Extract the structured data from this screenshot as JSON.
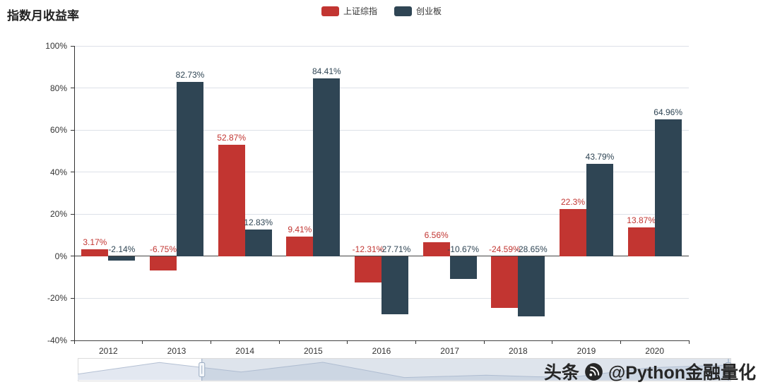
{
  "title": "指数月收益率",
  "legend": [
    {
      "label": "上证综指",
      "color": "#c23531"
    },
    {
      "label": "创业板",
      "color": "#2f4554"
    }
  ],
  "watermark": {
    "prefix": "头条",
    "handle": "@Python金融量化"
  },
  "datazoom": {
    "start_percent": 19,
    "end_percent": 100
  },
  "chart_data": {
    "type": "bar",
    "title": "指数月收益率",
    "xlabel": "",
    "ylabel": "",
    "grid": true,
    "legend_position": "top",
    "categories": [
      "2012",
      "2013",
      "2014",
      "2015",
      "2016",
      "2017",
      "2018",
      "2019",
      "2020"
    ],
    "series": [
      {
        "name": "上证综指",
        "color": "#c23531",
        "values": [
          3.17,
          -6.75,
          52.87,
          9.41,
          -12.31,
          6.56,
          -24.59,
          22.3,
          13.87
        ],
        "labels": [
          "3.17%",
          "-6.75%",
          "52.87%",
          "9.41%",
          "-12.31%",
          "6.56%",
          "-24.59%",
          "22.3%",
          "13.87%"
        ]
      },
      {
        "name": "创业板",
        "color": "#2f4554",
        "values": [
          -2.14,
          82.73,
          12.83,
          84.41,
          -27.71,
          -10.67,
          -28.65,
          43.79,
          64.96
        ],
        "labels": [
          "-2.14%",
          "82.73%",
          "12.83%",
          "84.41%",
          "-27.71%",
          "-10.67%",
          "-28.65%",
          "43.79%",
          "64.96%"
        ]
      }
    ],
    "ylim": [
      -40,
      100
    ],
    "y_ticks": [
      {
        "label": "100%",
        "value": 100
      },
      {
        "label": "80%",
        "value": 80
      },
      {
        "label": "60%",
        "value": 60
      },
      {
        "label": "40%",
        "value": 40
      },
      {
        "label": "20%",
        "value": 20
      },
      {
        "label": "0%",
        "value": 0
      },
      {
        "label": "-20%",
        "value": -20
      },
      {
        "label": "-40%",
        "value": -40
      }
    ]
  }
}
